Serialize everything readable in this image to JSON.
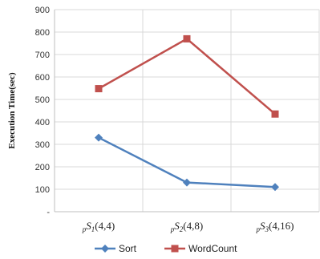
{
  "chart_data": {
    "type": "line",
    "categories": [
      "pS1(4,4)",
      "pS2(4,8)",
      "pS3(4,16)"
    ],
    "category_parts": [
      {
        "sub": "p",
        "main": "S",
        "idx": "1",
        "args": "(4,4)"
      },
      {
        "sub": "p",
        "main": "S",
        "idx": "2",
        "args": "(4,8)"
      },
      {
        "sub": "p",
        "main": "S",
        "idx": "3",
        "args": "(4,16)"
      }
    ],
    "series": [
      {
        "name": "Sort",
        "values": [
          330,
          130,
          110
        ],
        "color": "#4f81bd",
        "marker": "diamond"
      },
      {
        "name": "WordCount",
        "values": [
          548,
          770,
          435
        ],
        "color": "#c0504d",
        "marker": "square"
      }
    ],
    "ylabel": "Execution Time(sec)",
    "ylim": [
      0,
      900
    ],
    "yticks": [
      0,
      100,
      200,
      300,
      400,
      500,
      600,
      700,
      800,
      900
    ],
    "ytick_labels": [
      "-",
      "100",
      "200",
      "300",
      "400",
      "500",
      "600",
      "700",
      "800",
      "900"
    ],
    "grid": true,
    "legend_position": "bottom"
  }
}
